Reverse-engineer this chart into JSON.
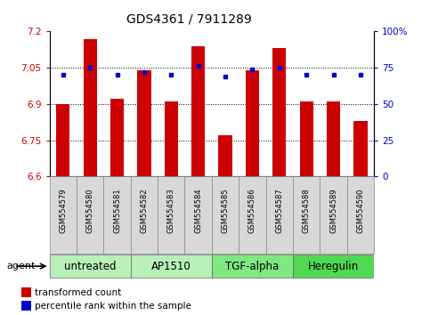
{
  "title": "GDS4361 / 7911289",
  "samples": [
    "GSM554579",
    "GSM554580",
    "GSM554581",
    "GSM554582",
    "GSM554583",
    "GSM554584",
    "GSM554585",
    "GSM554586",
    "GSM554587",
    "GSM554588",
    "GSM554589",
    "GSM554590"
  ],
  "red_values": [
    6.9,
    7.17,
    6.92,
    7.04,
    6.91,
    7.14,
    6.77,
    7.04,
    7.13,
    6.91,
    6.91,
    6.83
  ],
  "blue_values": [
    70,
    75,
    70,
    72,
    70,
    76,
    69,
    74,
    75,
    70,
    70,
    70
  ],
  "groups": [
    {
      "label": "untreated",
      "start": 0,
      "end": 3,
      "color": "#b8f0b8"
    },
    {
      "label": "AP1510",
      "start": 3,
      "end": 6,
      "color": "#b8f0b8"
    },
    {
      "label": "TGF-alpha",
      "start": 6,
      "end": 9,
      "color": "#80e880"
    },
    {
      "label": "Heregulin",
      "start": 9,
      "end": 12,
      "color": "#50d850"
    }
  ],
  "ylim_left": [
    6.6,
    7.2
  ],
  "ylim_right": [
    0,
    100
  ],
  "yticks_left": [
    6.6,
    6.75,
    6.9,
    7.05,
    7.2
  ],
  "ytick_labels_left": [
    "6.6",
    "6.75",
    "6.9",
    "7.05",
    "7.2"
  ],
  "yticks_right": [
    0,
    25,
    50,
    75,
    100
  ],
  "ytick_labels_right": [
    "0",
    "25",
    "50",
    "75",
    "100%"
  ],
  "hlines": [
    6.75,
    6.9,
    7.05
  ],
  "bar_color": "#cc0000",
  "dot_color": "#0000cc",
  "bar_width": 0.5,
  "legend_items": [
    {
      "color": "#cc0000",
      "label": "transformed count"
    },
    {
      "color": "#0000cc",
      "label": "percentile rank within the sample"
    }
  ],
  "agent_label": "agent",
  "title_fontsize": 10,
  "tick_fontsize": 7.5,
  "sample_fontsize": 6.0,
  "group_fontsize": 8.5,
  "legend_fontsize": 7.5,
  "background_color": "#ffffff",
  "plot_bg": "#ffffff",
  "sample_box_color": "#d8d8d8"
}
